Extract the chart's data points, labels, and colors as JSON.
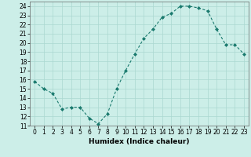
{
  "x": [
    0,
    1,
    2,
    3,
    4,
    5,
    6,
    7,
    8,
    9,
    10,
    11,
    12,
    13,
    14,
    15,
    16,
    17,
    18,
    19,
    20,
    21,
    22,
    23
  ],
  "y": [
    15.8,
    15.0,
    14.5,
    12.8,
    13.0,
    13.0,
    11.8,
    11.2,
    12.3,
    15.0,
    17.0,
    18.8,
    20.5,
    21.5,
    22.8,
    23.2,
    24.0,
    24.0,
    23.8,
    23.5,
    21.5,
    19.8,
    19.8,
    18.8
  ],
  "xlabel": "Humidex (Indice chaleur)",
  "ylabel": "",
  "xlim": [
    -0.5,
    23.5
  ],
  "ylim": [
    11,
    24.5
  ],
  "yticks": [
    11,
    12,
    13,
    14,
    15,
    16,
    17,
    18,
    19,
    20,
    21,
    22,
    23,
    24
  ],
  "xticks": [
    0,
    1,
    2,
    3,
    4,
    5,
    6,
    7,
    8,
    9,
    10,
    11,
    12,
    13,
    14,
    15,
    16,
    17,
    18,
    19,
    20,
    21,
    22,
    23
  ],
  "line_color": "#1a7a6e",
  "marker_color": "#1a7a6e",
  "bg_color": "#cceee8",
  "grid_color": "#aad8d0",
  "label_fontsize": 6.5,
  "tick_fontsize": 5.5
}
